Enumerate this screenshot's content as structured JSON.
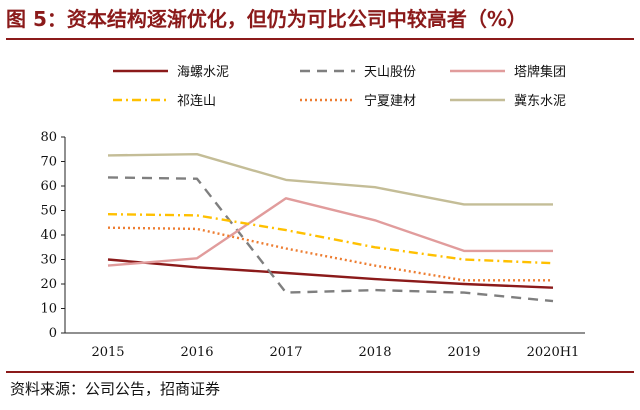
{
  "figure": {
    "title": "图 5：资本结构逐渐优化，但仍为可比公司中较高者（%）",
    "source": "资料来源：公司公告，招商证券"
  },
  "chart_data": {
    "type": "line",
    "title": "图 5：资本结构逐渐优化，但仍为可比公司中较高者（%）",
    "xlabel": "",
    "ylabel": "",
    "categories": [
      "2015",
      "2016",
      "2017",
      "2018",
      "2019",
      "2020H1"
    ],
    "ylim": [
      0,
      80
    ],
    "yticks": [
      0,
      10,
      20,
      30,
      40,
      50,
      60,
      70,
      80
    ],
    "grid": false,
    "legend_position": "top",
    "series": [
      {
        "name": "海螺水泥",
        "values": [
          30.0,
          26.8,
          24.5,
          22.0,
          20.0,
          18.5
        ],
        "color": "#8b1a1a",
        "style": "solid"
      },
      {
        "name": "天山股份",
        "values": [
          63.5,
          63.0,
          16.5,
          17.5,
          16.5,
          13.0
        ],
        "color": "#7f7f7f",
        "style": "dash"
      },
      {
        "name": "塔牌集团",
        "values": [
          27.5,
          30.5,
          55.0,
          46.0,
          33.5,
          33.5
        ],
        "color": "#e19c9c",
        "style": "solid"
      },
      {
        "name": "祁连山",
        "values": [
          48.5,
          48.0,
          42.0,
          35.0,
          30.0,
          28.5
        ],
        "color": "#ffc000",
        "style": "dashdot"
      },
      {
        "name": "宁夏建材",
        "values": [
          43.0,
          42.5,
          34.5,
          27.5,
          21.5,
          21.5
        ],
        "color": "#ed7d31",
        "style": "dot"
      },
      {
        "name": "冀东水泥",
        "values": [
          72.5,
          73.0,
          62.5,
          59.5,
          52.5,
          52.5
        ],
        "color": "#c4bd97",
        "style": "solid"
      }
    ]
  }
}
